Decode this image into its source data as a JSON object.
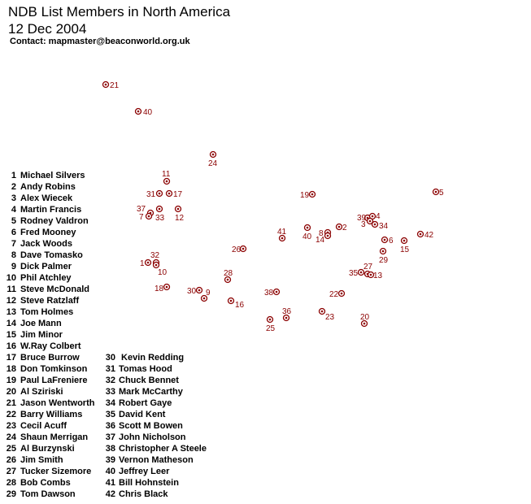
{
  "title": "NDB List Members in North America",
  "date": "12 Dec 2004",
  "contact": "Contact: mapmaster@beaconworld.org.uk",
  "marker_color": "#8b0000",
  "members": [
    {
      "num": "1",
      "name": "Michael Silvers"
    },
    {
      "num": "2",
      "name": "Andy Robins"
    },
    {
      "num": "3",
      "name": "Alex Wiecek"
    },
    {
      "num": "4",
      "name": "Martin Francis"
    },
    {
      "num": "5",
      "name": "Rodney Valdron"
    },
    {
      "num": "6",
      "name": "Fred Mooney"
    },
    {
      "num": "7",
      "name": "Jack Woods"
    },
    {
      "num": "8",
      "name": "Dave Tomasko"
    },
    {
      "num": "9",
      "name": "Dick Palmer"
    },
    {
      "num": "10",
      "name": "Phil Atchley"
    },
    {
      "num": "11",
      "name": "Steve McDonald"
    },
    {
      "num": "12",
      "name": "Steve Ratzlaff"
    },
    {
      "num": "13",
      "name": "Tom Holmes"
    },
    {
      "num": "14",
      "name": "Joe Mann"
    },
    {
      "num": "15",
      "name": "Jim Minor"
    },
    {
      "num": "16",
      "name": "W.Ray Colbert"
    },
    {
      "num": "17",
      "name": "Bruce Burrow"
    },
    {
      "num": "18",
      "name": "Don Tomkinson"
    },
    {
      "num": "19",
      "name": "Paul LaFreniere"
    },
    {
      "num": "20",
      "name": "Al Sziriski"
    },
    {
      "num": "21",
      "name": "Jason Wentworth"
    },
    {
      "num": "22",
      "name": "Barry Williams"
    },
    {
      "num": "23",
      "name": "Cecil Acuff"
    },
    {
      "num": "24",
      "name": "Shaun Merrigan"
    },
    {
      "num": "25",
      "name": "Al Burzynski"
    },
    {
      "num": "26",
      "name": "Jim Smith"
    },
    {
      "num": "27",
      "name": "Tucker Sizemore"
    },
    {
      "num": "28",
      "name": "Bob Combs"
    },
    {
      "num": "29",
      "name": "Tom Dawson"
    },
    {
      "num": "30",
      "name": " Kevin Redding"
    },
    {
      "num": "31",
      "name": "Tomas Hood"
    },
    {
      "num": "32",
      "name": "Chuck Bennet"
    },
    {
      "num": "33",
      "name": "Mark McCarthy"
    },
    {
      "num": "34",
      "name": "Robert Gaye"
    },
    {
      "num": "35",
      "name": "David Kent"
    },
    {
      "num": "36",
      "name": "Scott M Bowen"
    },
    {
      "num": "37",
      "name": "John Nicholson"
    },
    {
      "num": "38",
      "name": "Christopher A Steele"
    },
    {
      "num": "39",
      "name": "Vernon Matheson"
    },
    {
      "num": "40",
      "name": "Jeffrey Leer"
    },
    {
      "num": "41",
      "name": "Bill Hohnstein"
    },
    {
      "num": "42",
      "name": "Chris Black"
    }
  ],
  "markers": [
    {
      "label": "21"
    },
    {
      "label": "40"
    },
    {
      "label": "24"
    },
    {
      "label": "11"
    },
    {
      "label": "31"
    },
    {
      "label": "17"
    },
    {
      "label": "37"
    },
    {
      "label": "7"
    },
    {
      "label": "33"
    },
    {
      "label": "12"
    },
    {
      "label": "19"
    },
    {
      "label": "5"
    },
    {
      "label": "39"
    },
    {
      "label": "4"
    },
    {
      "label": "3"
    },
    {
      "label": "34"
    },
    {
      "label": "2"
    },
    {
      "label": "8"
    },
    {
      "label": "14"
    },
    {
      "label": "40"
    },
    {
      "label": "41"
    },
    {
      "label": "42"
    },
    {
      "label": "6"
    },
    {
      "label": "15"
    },
    {
      "label": "29"
    },
    {
      "label": "26"
    },
    {
      "label": "32"
    },
    {
      "label": "1"
    },
    {
      "label": "10"
    },
    {
      "label": "28"
    },
    {
      "label": "27"
    },
    {
      "label": "35"
    },
    {
      "label": "13"
    },
    {
      "label": "18"
    },
    {
      "label": "30"
    },
    {
      "label": "9"
    },
    {
      "label": "16"
    },
    {
      "label": "38"
    },
    {
      "label": "22"
    },
    {
      "label": "36"
    },
    {
      "label": "23"
    },
    {
      "label": "25"
    },
    {
      "label": "20"
    }
  ]
}
